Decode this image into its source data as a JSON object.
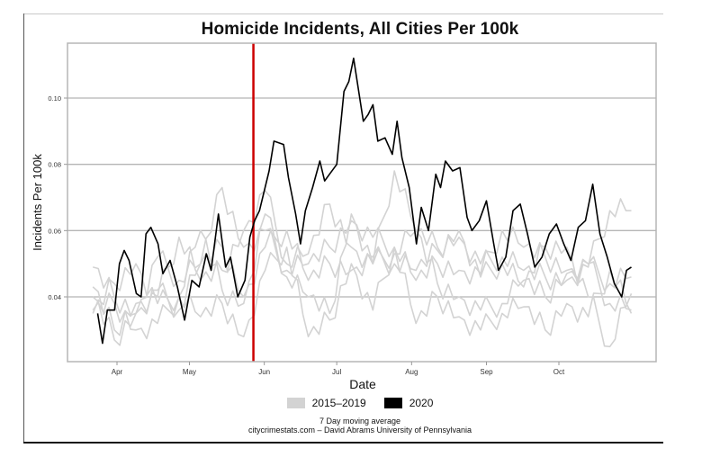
{
  "chart_data": {
    "type": "line",
    "title": "Homicide Incidents, All Cities Per 100k",
    "xlabel": "Date",
    "ylabel": "Incidents Per 100k",
    "x_ticks": [
      "Apr",
      "May",
      "Jun",
      "Jul",
      "Aug",
      "Sep",
      "Oct"
    ],
    "y_ticks": [
      "0.04",
      "0.06",
      "0.08",
      "0.10"
    ],
    "ylim": [
      0.022,
      0.118
    ],
    "xlim": [
      "2020-03-20",
      "2020-10-31"
    ],
    "grid": "horizontal",
    "annotations": [
      {
        "type": "vline",
        "x": "2020-05-26",
        "color": "#cc0000"
      }
    ],
    "legend": [
      {
        "label": "2015–2019",
        "color": "#d3d3d3"
      },
      {
        "label": "2020",
        "color": "#000000"
      }
    ],
    "legend_position": "bottom",
    "caption": [
      "7 Day moving average",
      "citycrimestats.com –  David Abrams University of Pennsylvania"
    ],
    "series_2020": {
      "name": "2020",
      "color": "#000000",
      "points_week_value": [
        [
          "Mar 24",
          0.035
        ],
        [
          "Mar 26",
          0.026
        ],
        [
          "Mar 28",
          0.036
        ],
        [
          "Mar 31",
          0.036
        ],
        [
          "Apr 2",
          0.05
        ],
        [
          "Apr 4",
          0.054
        ],
        [
          "Apr 6",
          0.051
        ],
        [
          "Apr 9",
          0.041
        ],
        [
          "Apr 11",
          0.04
        ],
        [
          "Apr 13",
          0.059
        ],
        [
          "Apr 15",
          0.061
        ],
        [
          "Apr 18",
          0.056
        ],
        [
          "Apr 20",
          0.047
        ],
        [
          "Apr 23",
          0.051
        ],
        [
          "Apr 26",
          0.043
        ],
        [
          "Apr 29",
          0.033
        ],
        [
          "May 2",
          0.045
        ],
        [
          "May 5",
          0.043
        ],
        [
          "May 8",
          0.053
        ],
        [
          "May 10",
          0.048
        ],
        [
          "May 13",
          0.065
        ],
        [
          "May 16",
          0.049
        ],
        [
          "May 18",
          0.052
        ],
        [
          "May 21",
          0.04
        ],
        [
          "May 24",
          0.045
        ],
        [
          "May 26",
          0.058
        ],
        [
          "May 28",
          0.063
        ],
        [
          "May 30",
          0.066
        ],
        [
          "Jun 3",
          0.078
        ],
        [
          "Jun 5",
          0.087
        ],
        [
          "Jun 9",
          0.086
        ],
        [
          "Jun 11",
          0.076
        ],
        [
          "Jun 14",
          0.065
        ],
        [
          "Jun 16",
          0.056
        ],
        [
          "Jun 18",
          0.066
        ],
        [
          "Jun 21",
          0.073
        ],
        [
          "Jun 24",
          0.081
        ],
        [
          "Jun 26",
          0.075
        ],
        [
          "Jun 28",
          0.077
        ],
        [
          "Jul 1",
          0.08
        ],
        [
          "Jul 4",
          0.102
        ],
        [
          "Jul 6",
          0.105
        ],
        [
          "Jul 8",
          0.112
        ],
        [
          "Jul 12",
          0.093
        ],
        [
          "Jul 14",
          0.095
        ],
        [
          "Jul 16",
          0.098
        ],
        [
          "Jul 18",
          0.087
        ],
        [
          "Jul 21",
          0.088
        ],
        [
          "Jul 24",
          0.083
        ],
        [
          "Jul 26",
          0.093
        ],
        [
          "Jul 28",
          0.082
        ],
        [
          "Jul 31",
          0.073
        ],
        [
          "Aug 3",
          0.056
        ],
        [
          "Aug 5",
          0.067
        ],
        [
          "Aug 8",
          0.06
        ],
        [
          "Aug 11",
          0.077
        ],
        [
          "Aug 13",
          0.073
        ],
        [
          "Aug 15",
          0.081
        ],
        [
          "Aug 18",
          0.078
        ],
        [
          "Aug 21",
          0.079
        ],
        [
          "Aug 24",
          0.064
        ],
        [
          "Aug 26",
          0.06
        ],
        [
          "Aug 29",
          0.063
        ],
        [
          "Sep 1",
          0.069
        ],
        [
          "Sep 4",
          0.056
        ],
        [
          "Sep 6",
          0.048
        ],
        [
          "Sep 9",
          0.052
        ],
        [
          "Sep 12",
          0.066
        ],
        [
          "Sep 15",
          0.068
        ],
        [
          "Sep 18",
          0.059
        ],
        [
          "Sep 21",
          0.049
        ],
        [
          "Sep 24",
          0.052
        ],
        [
          "Sep 27",
          0.059
        ],
        [
          "Sep 30",
          0.062
        ],
        [
          "Oct 3",
          0.056
        ],
        [
          "Oct 6",
          0.051
        ],
        [
          "Oct 9",
          0.061
        ],
        [
          "Oct 12",
          0.063
        ],
        [
          "Oct 15",
          0.074
        ],
        [
          "Oct 18",
          0.059
        ],
        [
          "Oct 21",
          0.052
        ],
        [
          "Oct 24",
          0.044
        ],
        [
          "Oct 27",
          0.04
        ],
        [
          "Oct 29",
          0.048
        ],
        [
          "Oct 31",
          0.049
        ]
      ]
    },
    "series_2015_2019": {
      "name": "2015–2019",
      "color": "#d3d3d3",
      "note": "five background series, each fluctuating roughly between 0.026 and 0.080",
      "series": [
        {
          "name": "year-a",
          "values": [
            0.049,
            0.04,
            0.035,
            0.052,
            0.045,
            0.05,
            0.073,
            0.055,
            0.06,
            0.048,
            0.05,
            0.055,
            0.063,
            0.058,
            0.055,
            0.045,
            0.05,
            0.048,
            0.047,
            0.06,
            0.055,
            0.052,
            0.048,
            0.05,
            0.044,
            0.046
          ]
        },
        {
          "name": "year-b",
          "values": [
            0.043,
            0.03,
            0.038,
            0.04,
            0.058,
            0.045,
            0.048,
            0.06,
            0.072,
            0.05,
            0.053,
            0.068,
            0.055,
            0.05,
            0.053,
            0.06,
            0.055,
            0.058,
            0.05,
            0.052,
            0.048,
            0.046,
            0.045,
            0.049,
            0.066,
            0.066
          ]
        },
        {
          "name": "year-c",
          "values": [
            0.035,
            0.044,
            0.05,
            0.038,
            0.04,
            0.06,
            0.042,
            0.038,
            0.065,
            0.046,
            0.04,
            0.035,
            0.065,
            0.05,
            0.078,
            0.06,
            0.044,
            0.04,
            0.036,
            0.038,
            0.045,
            0.04,
            0.047,
            0.05,
            0.038,
            0.036
          ]
        },
        {
          "name": "year-d",
          "values": [
            0.04,
            0.027,
            0.035,
            0.042,
            0.036,
            0.05,
            0.055,
            0.04,
            0.055,
            0.06,
            0.045,
            0.05,
            0.048,
            0.052,
            0.05,
            0.048,
            0.054,
            0.06,
            0.046,
            0.05,
            0.043,
            0.055,
            0.055,
            0.04,
            0.025,
            0.041
          ]
        },
        {
          "name": "year-e",
          "values": [
            0.036,
            0.038,
            0.03,
            0.032,
            0.04,
            0.034,
            0.038,
            0.028,
            0.048,
            0.055,
            0.028,
            0.033,
            0.05,
            0.036,
            0.055,
            0.032,
            0.04,
            0.034,
            0.03,
            0.035,
            0.037,
            0.03,
            0.038,
            0.034,
            0.048,
            0.035
          ]
        }
      ]
    }
  }
}
